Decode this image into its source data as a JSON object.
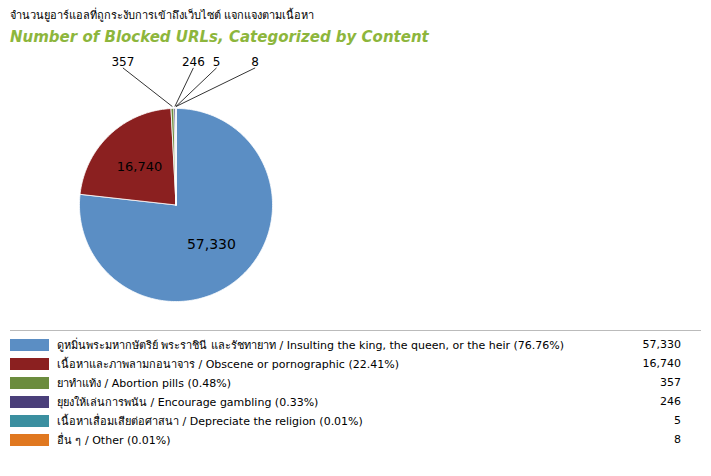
{
  "chart_data": {
    "type": "pie",
    "title": "จำนวนยูอาร์แอลที่ถูกระงับการเข้าถึงเว็บไซต์ แจกแจงตามเนื้อหา",
    "subtitle": "Number of Blocked URLs, Categorized by Content",
    "categories": [
      "ดูหมิ่นพระมหากษัตริย์ พระราชินี และรัชทายาท / Insulting the king, the queen, or the heir (76.76%)",
      "เนื้อหาและภาพลามกอนาจาร / Obscene or pornographic (22.41%)",
      "ยาทำแท้ง / Abortion pills (0.48%)",
      "ยุยงให้เล่นการพนัน / Encourage gambling (0.33%)",
      "เนื้อหาเสื่อมเสียต่อศาสนา / Depreciate the religion (0.01%)",
      "อื่น ๆ / Other (0.01%)"
    ],
    "values": [
      57330,
      16740,
      357,
      246,
      5,
      8
    ],
    "value_labels": [
      "57,330",
      "16,740",
      "357",
      "246",
      "5",
      "8"
    ],
    "colors": [
      "#5b8ec4",
      "#8b2020",
      "#6b8c3e",
      "#4a3f7a",
      "#3b8fa0",
      "#e07820"
    ],
    "data_labels": true,
    "legend": "bottom"
  }
}
